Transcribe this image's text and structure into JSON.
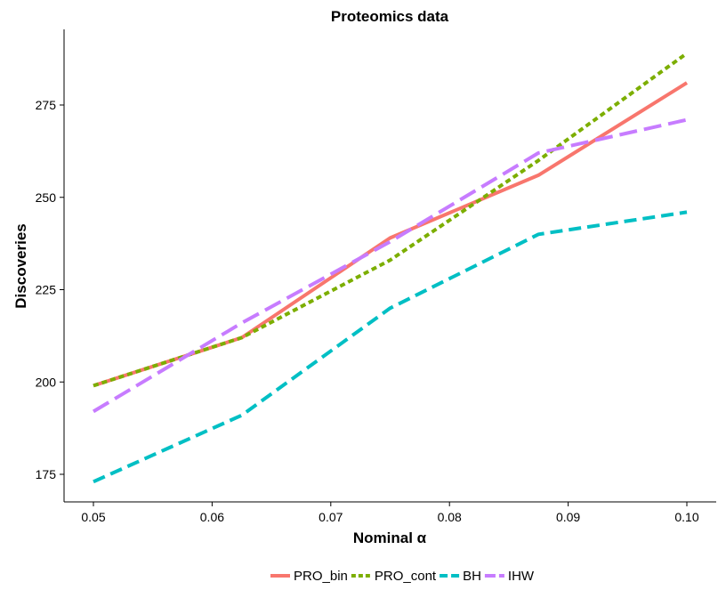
{
  "chart_data": {
    "type": "line",
    "title": "Proteomics data",
    "xlabel": "Nominal α",
    "ylabel": "Discoveries",
    "xlim": [
      0.05,
      0.1
    ],
    "ylim": [
      167,
      293
    ],
    "x_ticks": [
      {
        "value": 0.05,
        "label": "0.05"
      },
      {
        "value": 0.06,
        "label": "0.06"
      },
      {
        "value": 0.07,
        "label": "0.07"
      },
      {
        "value": 0.08,
        "label": "0.08"
      },
      {
        "value": 0.09,
        "label": "0.09"
      },
      {
        "value": 0.1,
        "label": "0.10"
      }
    ],
    "y_ticks": [
      {
        "value": 175,
        "label": "175"
      },
      {
        "value": 200,
        "label": "200"
      },
      {
        "value": 225,
        "label": "225"
      },
      {
        "value": 250,
        "label": "250"
      },
      {
        "value": 275,
        "label": "275"
      }
    ],
    "x": [
      0.05,
      0.0625,
      0.075,
      0.0875,
      0.1
    ],
    "series": [
      {
        "name": "PRO_bin",
        "color": "#F8766D",
        "dash": "solid",
        "values": [
          199,
          212,
          239,
          256,
          281
        ]
      },
      {
        "name": "PRO_cont",
        "color": "#7CAE00",
        "dash": "dotted",
        "values": [
          199,
          212,
          233,
          260,
          289
        ]
      },
      {
        "name": "BH",
        "color": "#00BFC4",
        "dash": "dashed",
        "values": [
          173,
          191,
          220,
          240,
          246
        ]
      },
      {
        "name": "IHW",
        "color": "#C77CFF",
        "dash": "longdash",
        "values": [
          192,
          216,
          238,
          262,
          271
        ]
      }
    ],
    "legend_position": "bottom",
    "grid": false
  }
}
